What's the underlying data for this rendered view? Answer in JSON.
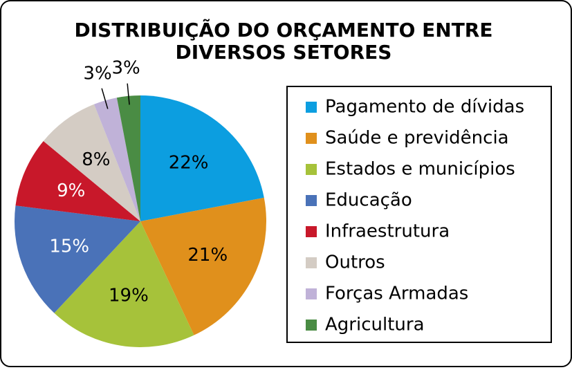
{
  "chart_data": {
    "type": "pie",
    "title": [
      "DISTRIBUIÇÃO DO ORÇAMENTO ENTRE",
      "DIVERSOS SETORES"
    ],
    "categories": [
      "Pagamento de dívidas",
      "Saúde e previdência",
      "Estados e municípios",
      "Educação",
      "Infraestrutura",
      "Outros",
      "Forças Armadas",
      "Agricultura"
    ],
    "values": [
      22,
      21,
      19,
      15,
      9,
      8,
      3,
      3
    ],
    "value_labels": [
      "22%",
      "21%",
      "19%",
      "15%",
      "9%",
      "8%",
      "3%",
      "3%"
    ],
    "colors": [
      "#0c9ee0",
      "#e0901c",
      "#a6c23a",
      "#4a72b8",
      "#c8182a",
      "#d4ccc4",
      "#c0b2d8",
      "#4a8c44"
    ],
    "label_colors": [
      "#000000",
      "#000000",
      "#000000",
      "#ffffff",
      "#ffffff",
      "#000000",
      "#000000",
      "#000000"
    ],
    "legend": "right"
  }
}
